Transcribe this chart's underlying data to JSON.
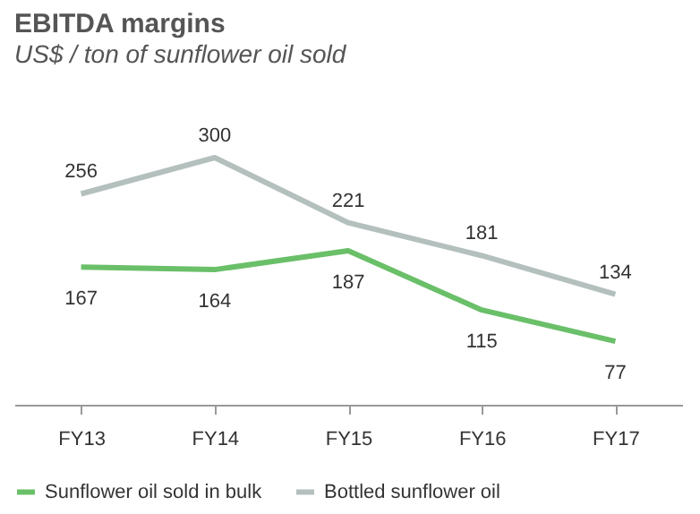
{
  "chart_data": {
    "type": "line",
    "title": "EBITDA margins",
    "subtitle": "US$ / ton of sunflower oil sold",
    "categories": [
      "FY13",
      "FY14",
      "FY15",
      "FY16",
      "FY17"
    ],
    "series": [
      {
        "name": "Sunflower oil sold in bulk",
        "color": "#6abf69",
        "values": [
          167,
          164,
          187,
          115,
          77
        ]
      },
      {
        "name": "Bottled sunflower oil",
        "color": "#b3c0bd",
        "values": [
          256,
          300,
          221,
          181,
          134
        ]
      }
    ],
    "data_labels": true,
    "grid": false,
    "legend": "bottom",
    "marker": "none",
    "line_style": "solid"
  }
}
